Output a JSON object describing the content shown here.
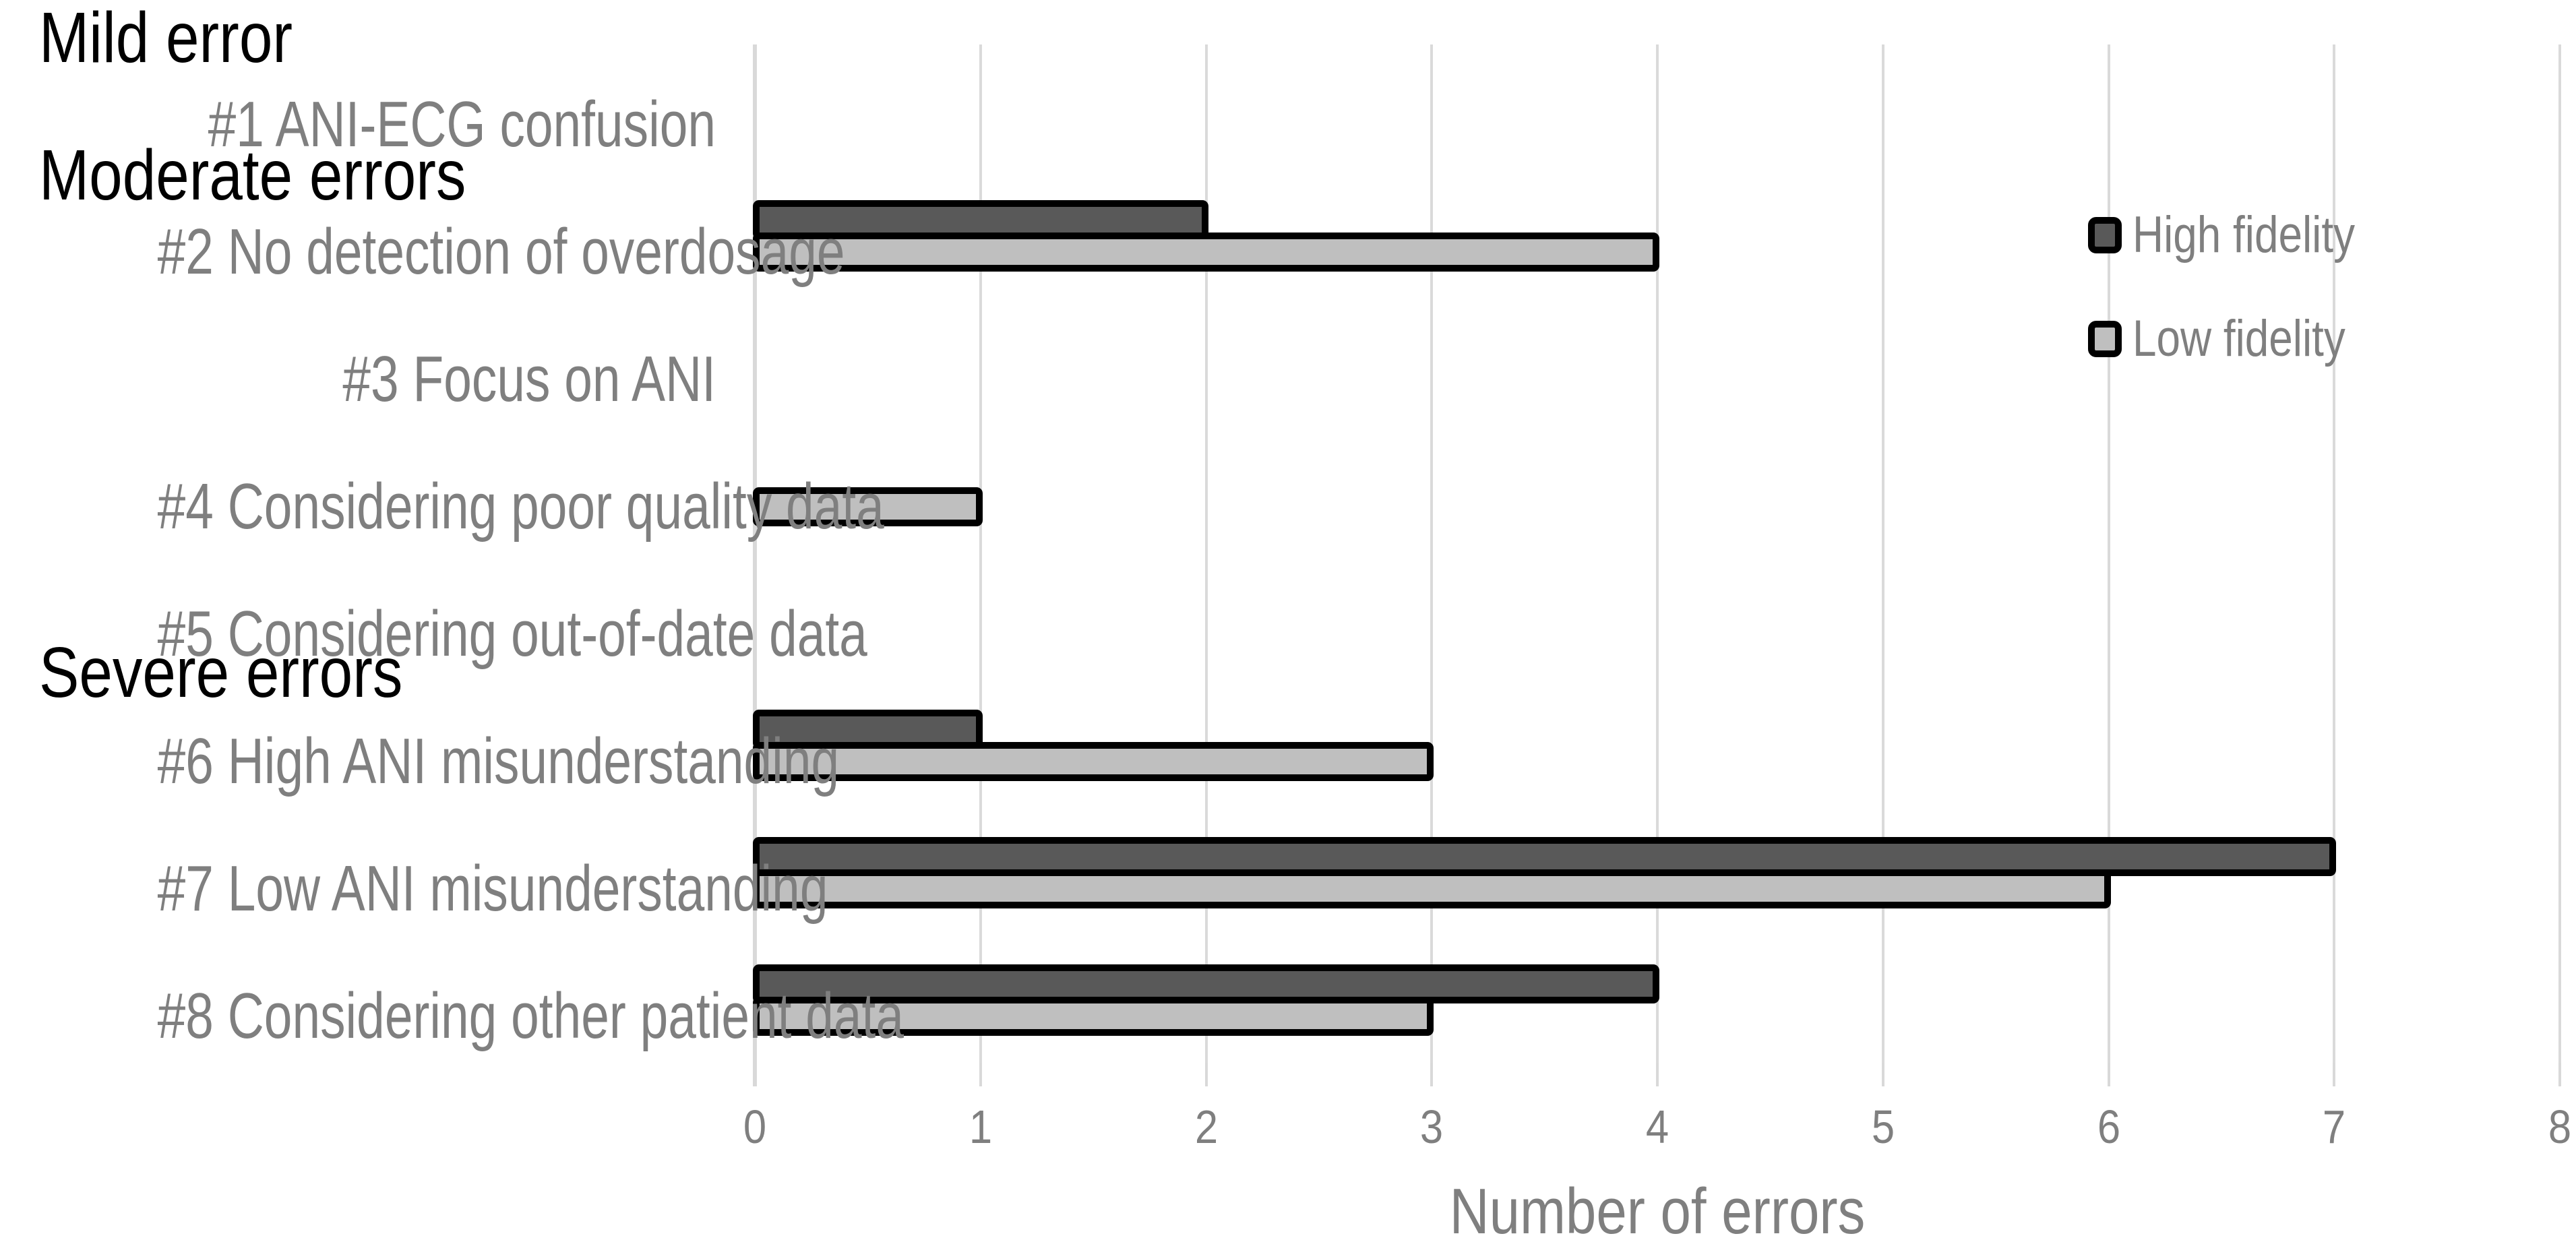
{
  "page": {
    "background": "#FFFFFF"
  },
  "chart_data": {
    "type": "bar",
    "orientation": "horizontal",
    "title": "",
    "xlabel": "Number of errors",
    "ylabel": "",
    "xlim": [
      0,
      8
    ],
    "xticks": [
      0,
      1,
      2,
      3,
      4,
      5,
      6,
      7,
      8
    ],
    "grid": true,
    "legend_position": "right",
    "sections": [
      {
        "label": "Mild error",
        "start_index": 0
      },
      {
        "label": "Moderate errors",
        "start_index": 1
      },
      {
        "label": "Severe errors",
        "start_index": 5
      }
    ],
    "categories": [
      "#1 ANI-ECG confusion",
      "#2 No detection of overdosage",
      "#3 Focus on ANI",
      "#4 Considering poor quality data",
      "#5 Considering out-of-date data",
      "#6 High ANI misunderstanding",
      "#7 Low ANI misunderstanding",
      "#8 Considering other patient data"
    ],
    "series": [
      {
        "name": "High fidelity",
        "color": "#595959",
        "values": [
          0,
          2,
          0,
          0,
          0,
          1,
          7,
          4
        ]
      },
      {
        "name": "Low fidelity",
        "color": "#BFBFBF",
        "values": [
          0,
          4,
          0,
          1,
          0,
          3,
          6,
          3
        ]
      }
    ],
    "colors": {
      "bar_border": "#000000",
      "gridline": "#DADADA",
      "axis_line": "#D9D9D9",
      "label_text": "#7F7F7F",
      "section_text": "#000000"
    }
  }
}
